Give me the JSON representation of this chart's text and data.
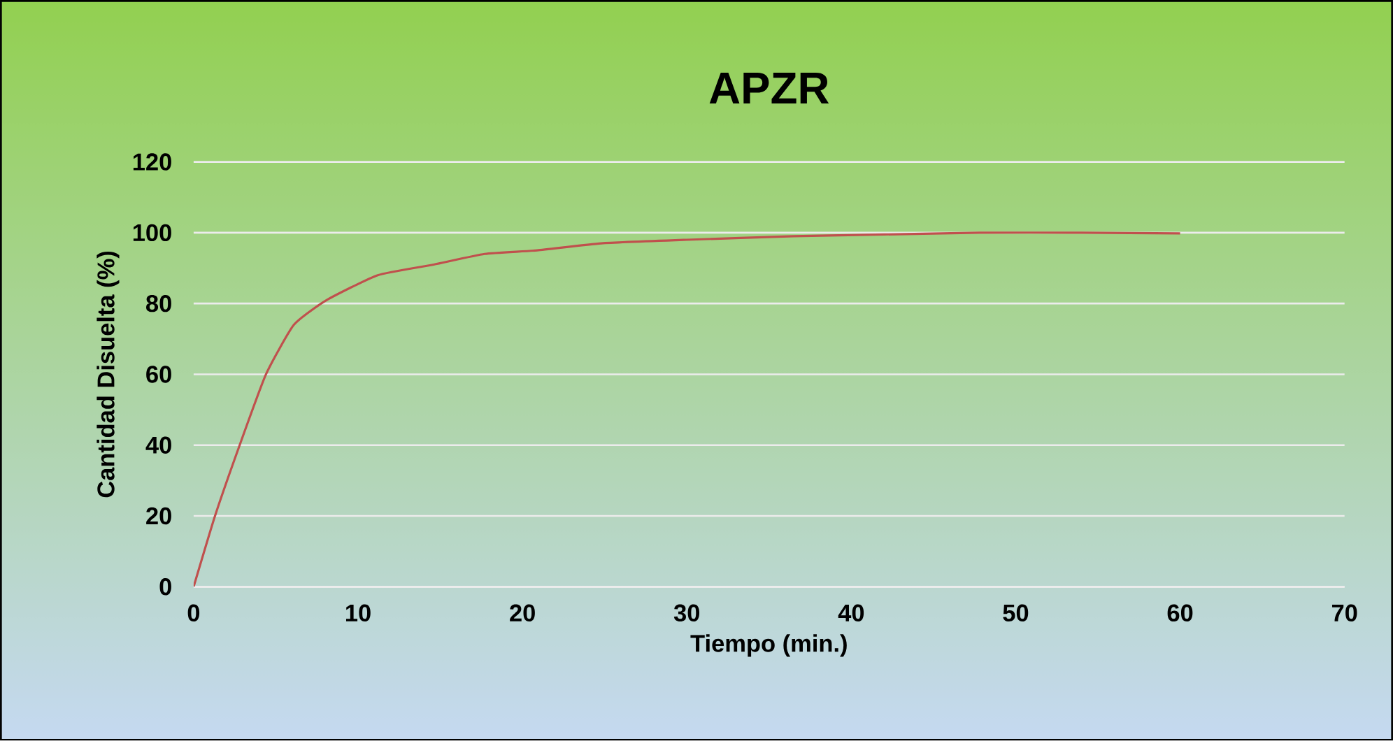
{
  "chart_data": {
    "type": "line",
    "title": "APZR",
    "xlabel": "Tiempo (min.)",
    "ylabel": "Cantidad Disuelta (%)",
    "xlim": [
      0,
      70
    ],
    "xticks": [
      0,
      10,
      20,
      30,
      40,
      50,
      60,
      70
    ],
    "ylim": [
      0,
      120
    ],
    "yticks": [
      0,
      20,
      40,
      60,
      80,
      100,
      120
    ],
    "grid": "y",
    "series": [
      {
        "color": "#c0504d",
        "x": [
          0,
          1.3,
          2.8,
          4.4,
          6.1,
          8.1,
          11.2,
          14.6,
          17.7,
          20.9,
          24.8,
          30,
          36.5,
          42,
          47.8,
          54,
          60
        ],
        "values": [
          0,
          20,
          40,
          60,
          74,
          81,
          88,
          91,
          94,
          95,
          97,
          98,
          99,
          99.5,
          100,
          100,
          99.8
        ]
      }
    ]
  }
}
